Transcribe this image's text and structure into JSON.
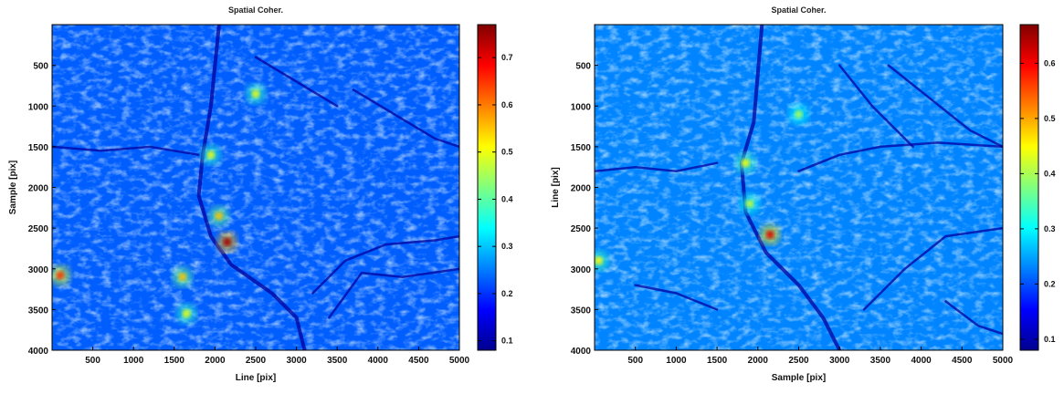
{
  "chart_data": [
    {
      "type": "heatmap",
      "title": "Spatial Coher.",
      "xlabel": "Line [pix]",
      "ylabel": "Sample [pix]",
      "xlim": [
        0,
        5000
      ],
      "ylim": [
        4000,
        0
      ],
      "xticks": [
        500,
        1000,
        1500,
        2000,
        2500,
        3000,
        3500,
        4000,
        4500,
        5000
      ],
      "yticks": [
        500,
        1000,
        1500,
        2000,
        2500,
        3000,
        3500,
        4000
      ],
      "colorbar": {
        "range": [
          0.08,
          0.77
        ],
        "ticks": [
          0.1,
          0.2,
          0.3,
          0.4,
          0.5,
          0.6,
          0.7
        ],
        "colormap": "jet"
      },
      "hotspots": [
        {
          "x": 2150,
          "y": 2670,
          "value": 0.75
        },
        {
          "x": 2050,
          "y": 2350,
          "value": 0.55
        },
        {
          "x": 1950,
          "y": 1600,
          "value": 0.5
        },
        {
          "x": 2500,
          "y": 850,
          "value": 0.5
        },
        {
          "x": 100,
          "y": 3080,
          "value": 0.65
        },
        {
          "x": 1600,
          "y": 3100,
          "value": 0.55
        },
        {
          "x": 1650,
          "y": 3550,
          "value": 0.5
        }
      ]
    },
    {
      "type": "heatmap",
      "title": "Spatial Coher.",
      "xlabel": "Sample [pix]",
      "ylabel": "Line [pix]",
      "xlim": [
        0,
        5000
      ],
      "ylim": [
        4000,
        0
      ],
      "xticks": [
        500,
        1000,
        1500,
        2000,
        2500,
        3000,
        3500,
        4000,
        4500,
        5000
      ],
      "yticks": [
        500,
        1000,
        1500,
        2000,
        2500,
        3000,
        3500,
        4000
      ],
      "colorbar": {
        "range": [
          0.08,
          0.67
        ],
        "ticks": [
          0.1,
          0.2,
          0.3,
          0.4,
          0.5,
          0.6
        ],
        "colormap": "jet"
      },
      "hotspots": [
        {
          "x": 2150,
          "y": 2580,
          "value": 0.62
        },
        {
          "x": 1850,
          "y": 1700,
          "value": 0.45
        },
        {
          "x": 1900,
          "y": 2200,
          "value": 0.42
        },
        {
          "x": 50,
          "y": 2900,
          "value": 0.45
        },
        {
          "x": 2500,
          "y": 1100,
          "value": 0.4
        }
      ]
    }
  ]
}
